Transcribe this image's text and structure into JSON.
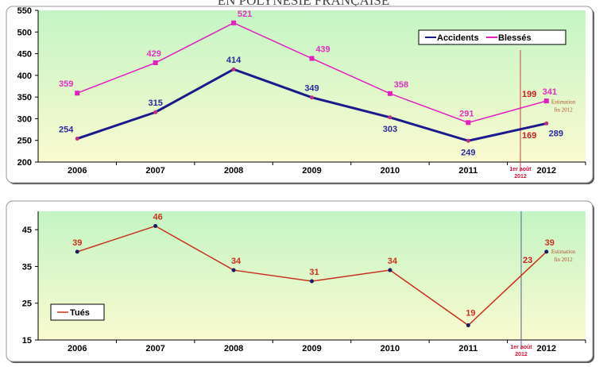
{
  "title": "EN POLYNESIE FRANÇAISE",
  "chart_data": [
    {
      "type": "line",
      "categories": [
        "2006",
        "2007",
        "2008",
        "2009",
        "2010",
        "2011",
        "2012"
      ],
      "ylim": [
        200,
        550
      ],
      "yticks": [
        200,
        250,
        300,
        350,
        400,
        450,
        500,
        550
      ],
      "legend_position": "top-right",
      "grid": false,
      "series": [
        {
          "name": "Accidents",
          "color": "#1a1a8c",
          "values": [
            254,
            315,
            414,
            349,
            303,
            249,
            289
          ]
        },
        {
          "name": "Blessés",
          "color": "#e020c0",
          "values": [
            359,
            429,
            521,
            439,
            358,
            291,
            341
          ]
        }
      ],
      "marker_label": "1er août 2012",
      "marker_values": {
        "Accidents": "169",
        "Blessés": "199"
      },
      "annotation": "Estimation fin 2012"
    },
    {
      "type": "line",
      "categories": [
        "2006",
        "2007",
        "2008",
        "2009",
        "2010",
        "2011",
        "2012"
      ],
      "ylim": [
        15,
        50
      ],
      "yticks": [
        15,
        25,
        35,
        45
      ],
      "legend_position": "bottom-left",
      "grid": false,
      "series": [
        {
          "name": "Tués",
          "color": "#c83020",
          "values": [
            39,
            46,
            34,
            31,
            34,
            19,
            39
          ]
        }
      ],
      "marker_label": "1er août 2012",
      "marker_values": {
        "Tués": "23"
      },
      "annotation": "Estimation fin 2012"
    }
  ]
}
